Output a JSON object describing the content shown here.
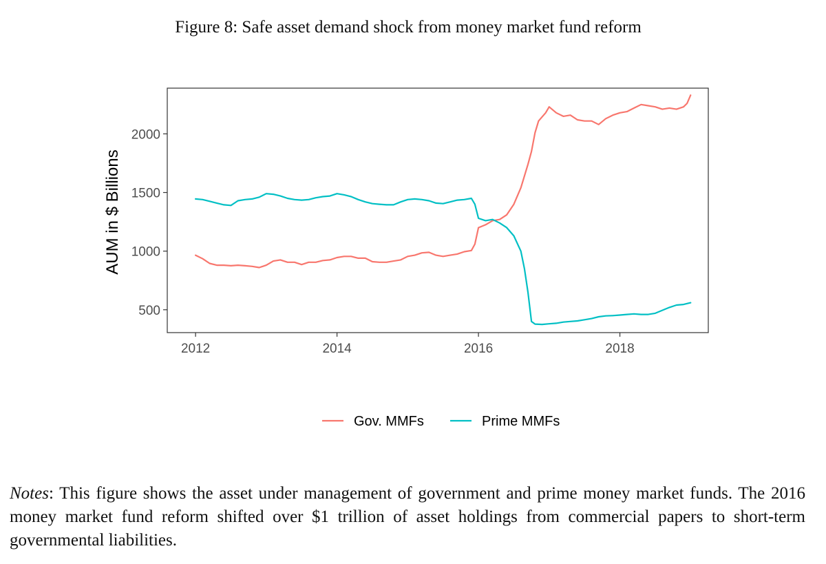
{
  "figure": {
    "caption": "Figure 8: Safe asset demand shock from money market fund reform",
    "notes_label": "Notes",
    "notes_text": ": This figure shows the asset under management of government and prime money market funds. The 2016 money market fund reform shifted over $1 trillion of asset holdings from commercial papers to short-term governmental liabilities."
  },
  "chart_data": {
    "type": "line",
    "title": "",
    "xlabel": "",
    "ylabel": "AUM in $ Billions",
    "xlim": [
      2011.6,
      2019.25
    ],
    "ylim": [
      305,
      2390
    ],
    "x_ticks": [
      2012,
      2014,
      2016,
      2018
    ],
    "y_ticks": [
      500,
      1000,
      1500,
      2000
    ],
    "legend_position": "bottom",
    "grid": false,
    "series": [
      {
        "name": "Gov. MMFs",
        "color": "#F8766D",
        "points": [
          [
            2012.0,
            965
          ],
          [
            2012.1,
            935
          ],
          [
            2012.2,
            895
          ],
          [
            2012.3,
            880
          ],
          [
            2012.4,
            880
          ],
          [
            2012.5,
            875
          ],
          [
            2012.6,
            880
          ],
          [
            2012.7,
            875
          ],
          [
            2012.8,
            870
          ],
          [
            2012.9,
            860
          ],
          [
            2013.0,
            880
          ],
          [
            2013.1,
            915
          ],
          [
            2013.2,
            925
          ],
          [
            2013.3,
            905
          ],
          [
            2013.4,
            905
          ],
          [
            2013.5,
            885
          ],
          [
            2013.6,
            905
          ],
          [
            2013.7,
            905
          ],
          [
            2013.8,
            920
          ],
          [
            2013.9,
            925
          ],
          [
            2014.0,
            945
          ],
          [
            2014.1,
            955
          ],
          [
            2014.2,
            955
          ],
          [
            2014.3,
            940
          ],
          [
            2014.4,
            940
          ],
          [
            2014.5,
            910
          ],
          [
            2014.6,
            905
          ],
          [
            2014.7,
            905
          ],
          [
            2014.8,
            915
          ],
          [
            2014.9,
            925
          ],
          [
            2015.0,
            955
          ],
          [
            2015.1,
            965
          ],
          [
            2015.2,
            985
          ],
          [
            2015.3,
            990
          ],
          [
            2015.4,
            965
          ],
          [
            2015.5,
            955
          ],
          [
            2015.6,
            965
          ],
          [
            2015.7,
            975
          ],
          [
            2015.8,
            995
          ],
          [
            2015.9,
            1005
          ],
          [
            2015.95,
            1060
          ],
          [
            2016.0,
            1200
          ],
          [
            2016.1,
            1225
          ],
          [
            2016.2,
            1260
          ],
          [
            2016.3,
            1270
          ],
          [
            2016.4,
            1310
          ],
          [
            2016.5,
            1400
          ],
          [
            2016.6,
            1540
          ],
          [
            2016.7,
            1740
          ],
          [
            2016.75,
            1850
          ],
          [
            2016.8,
            2010
          ],
          [
            2016.85,
            2110
          ],
          [
            2016.95,
            2180
          ],
          [
            2017.0,
            2230
          ],
          [
            2017.1,
            2180
          ],
          [
            2017.2,
            2150
          ],
          [
            2017.3,
            2160
          ],
          [
            2017.4,
            2120
          ],
          [
            2017.5,
            2110
          ],
          [
            2017.6,
            2110
          ],
          [
            2017.7,
            2080
          ],
          [
            2017.8,
            2130
          ],
          [
            2017.9,
            2160
          ],
          [
            2018.0,
            2180
          ],
          [
            2018.1,
            2190
          ],
          [
            2018.2,
            2220
          ],
          [
            2018.3,
            2250
          ],
          [
            2018.4,
            2240
          ],
          [
            2018.5,
            2230
          ],
          [
            2018.6,
            2210
          ],
          [
            2018.7,
            2220
          ],
          [
            2018.8,
            2210
          ],
          [
            2018.9,
            2230
          ],
          [
            2018.95,
            2260
          ],
          [
            2019.0,
            2330
          ]
        ]
      },
      {
        "name": "Prime MMFs",
        "color": "#00BFC4",
        "points": [
          [
            2012.0,
            1445
          ],
          [
            2012.1,
            1440
          ],
          [
            2012.2,
            1425
          ],
          [
            2012.3,
            1410
          ],
          [
            2012.4,
            1395
          ],
          [
            2012.5,
            1390
          ],
          [
            2012.6,
            1430
          ],
          [
            2012.7,
            1440
          ],
          [
            2012.8,
            1445
          ],
          [
            2012.9,
            1460
          ],
          [
            2013.0,
            1490
          ],
          [
            2013.1,
            1485
          ],
          [
            2013.2,
            1470
          ],
          [
            2013.3,
            1450
          ],
          [
            2013.4,
            1440
          ],
          [
            2013.5,
            1435
          ],
          [
            2013.6,
            1440
          ],
          [
            2013.7,
            1455
          ],
          [
            2013.8,
            1465
          ],
          [
            2013.9,
            1470
          ],
          [
            2014.0,
            1490
          ],
          [
            2014.1,
            1480
          ],
          [
            2014.2,
            1465
          ],
          [
            2014.3,
            1440
          ],
          [
            2014.4,
            1420
          ],
          [
            2014.5,
            1405
          ],
          [
            2014.6,
            1400
          ],
          [
            2014.7,
            1395
          ],
          [
            2014.8,
            1395
          ],
          [
            2014.9,
            1420
          ],
          [
            2015.0,
            1440
          ],
          [
            2015.1,
            1445
          ],
          [
            2015.2,
            1440
          ],
          [
            2015.3,
            1430
          ],
          [
            2015.4,
            1410
          ],
          [
            2015.5,
            1405
          ],
          [
            2015.6,
            1420
          ],
          [
            2015.7,
            1435
          ],
          [
            2015.8,
            1440
          ],
          [
            2015.9,
            1450
          ],
          [
            2015.95,
            1400
          ],
          [
            2016.0,
            1280
          ],
          [
            2016.1,
            1260
          ],
          [
            2016.2,
            1270
          ],
          [
            2016.3,
            1240
          ],
          [
            2016.4,
            1200
          ],
          [
            2016.5,
            1130
          ],
          [
            2016.6,
            1000
          ],
          [
            2016.65,
            850
          ],
          [
            2016.7,
            650
          ],
          [
            2016.75,
            400
          ],
          [
            2016.8,
            378
          ],
          [
            2016.9,
            375
          ],
          [
            2017.0,
            380
          ],
          [
            2017.1,
            385
          ],
          [
            2017.2,
            395
          ],
          [
            2017.3,
            400
          ],
          [
            2017.4,
            405
          ],
          [
            2017.5,
            415
          ],
          [
            2017.6,
            425
          ],
          [
            2017.7,
            440
          ],
          [
            2017.8,
            448
          ],
          [
            2017.9,
            450
          ],
          [
            2018.0,
            455
          ],
          [
            2018.1,
            460
          ],
          [
            2018.2,
            465
          ],
          [
            2018.3,
            460
          ],
          [
            2018.4,
            460
          ],
          [
            2018.5,
            470
          ],
          [
            2018.6,
            495
          ],
          [
            2018.7,
            520
          ],
          [
            2018.8,
            540
          ],
          [
            2018.9,
            545
          ],
          [
            2019.0,
            560
          ]
        ]
      }
    ]
  }
}
